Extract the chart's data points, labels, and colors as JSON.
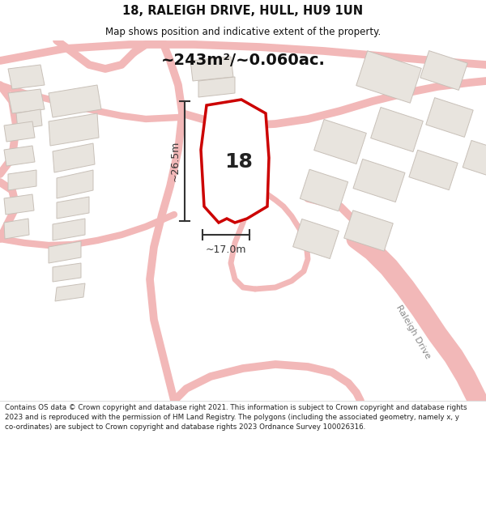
{
  "title_line1": "18, RALEIGH DRIVE, HULL, HU9 1UN",
  "title_line2": "Map shows position and indicative extent of the property.",
  "area_text": "~243m²/~0.060ac.",
  "number_text": "18",
  "dim1_text": "~26.5m",
  "dim2_text": "~17.0m",
  "footer_text": "Contains OS data © Crown copyright and database right 2021. This information is subject to Crown copyright and database rights 2023 and is reproduced with the permission of HM Land Registry. The polygons (including the associated geometry, namely x, y co-ordinates) are subject to Crown copyright and database rights 2023 Ordnance Survey 100026316.",
  "bg_color": "#f5f2ee",
  "highlight_color": "#cc0000",
  "road_outline_color": "#f2b8b8",
  "building_fill": "#e8e4de",
  "building_edge": "#c8c0b8",
  "white_bg": "#ffffff",
  "dim_color": "#333333",
  "text_color": "#111111",
  "raleigh_text_color": "#888888"
}
